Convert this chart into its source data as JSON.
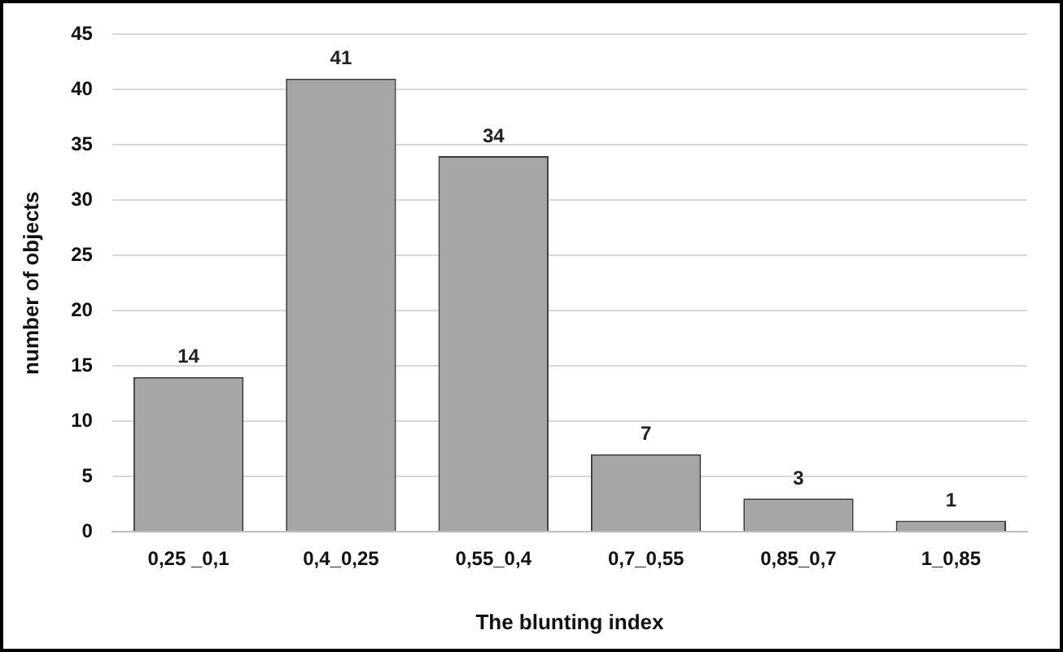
{
  "chart_data": {
    "type": "bar",
    "xlabel": "The blunting index",
    "ylabel": "number of objects",
    "categories": [
      "0,25 _0,1",
      "0,4_0,25",
      "0,55_0,4",
      "0,7_0,55",
      "0,85_0,7",
      "1_0,85"
    ],
    "values": [
      14,
      41,
      34,
      7,
      3,
      1
    ],
    "color": "#a6a6a6",
    "ylim": [
      0,
      45
    ],
    "yticks": [
      0,
      5,
      10,
      15,
      20,
      25,
      30,
      35,
      40,
      45
    ],
    "grid": "y",
    "data_labels": true,
    "legend": false
  }
}
